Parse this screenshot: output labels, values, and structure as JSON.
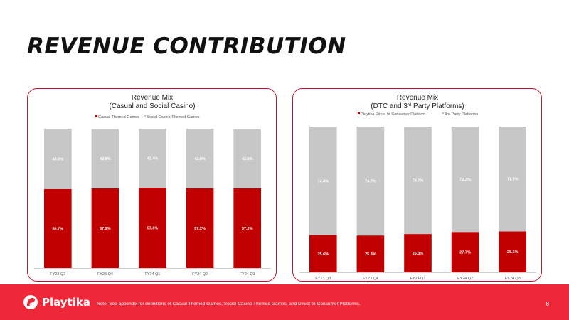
{
  "page": {
    "title": "REVENUE CONTRIBUTION",
    "footnote": "Note: See appendix for definitions of Casual Themed Games, Social Casino Themed Games, and Direct-to-Consumer Platforms.",
    "page_number": "8",
    "logo_text": "Playtika"
  },
  "colors": {
    "accent": "#c8102e",
    "footer": "#ee2839",
    "gray": "#c7c7c7"
  },
  "chart_data": [
    {
      "type": "bar",
      "stacked": true,
      "title_lines": [
        "Revenue Mix",
        "(Casual and Social Casino)"
      ],
      "categories": [
        "FY23 Q3",
        "FY23 Q4",
        "FY24 Q1",
        "FY24 Q2",
        "FY24 Q3"
      ],
      "series": [
        {
          "name": "Casual Themed Games",
          "values": [
            56.7,
            57.2,
            57.6,
            57.2,
            57.2
          ],
          "labels": [
            "56.7%",
            "57.2%",
            "57.6%",
            "57.2%",
            "57.2%"
          ],
          "color": "#c00000"
        },
        {
          "name": "Social Casino Themed Games",
          "values": [
            43.3,
            42.8,
            42.4,
            42.8,
            42.8
          ],
          "labels": [
            "43.3%",
            "42.8%",
            "42.4%",
            "42.8%",
            "42.8%"
          ],
          "color": "#c7c7c7"
        }
      ],
      "ylim": [
        0,
        100
      ],
      "legend": "top"
    },
    {
      "type": "bar",
      "stacked": true,
      "title_lines": [
        "Revenue Mix",
        "(DTC and 3",
        "rd",
        " Party Platforms)"
      ],
      "categories": [
        "FY23 Q3",
        "FY23 Q4",
        "FY24 Q1",
        "FY24 Q2",
        "FY24 Q3"
      ],
      "series": [
        {
          "name": "Playtika Direct-to-Consumer Platform",
          "values": [
            25.6,
            25.3,
            26.3,
            27.7,
            28.1
          ],
          "labels": [
            "25.6%",
            "25.3%",
            "26.3%",
            "27.7%",
            "28.1%"
          ],
          "color": "#c00000"
        },
        {
          "name": "3rd Party Platforms",
          "values": [
            74.4,
            74.7,
            73.7,
            72.3,
            71.9
          ],
          "labels": [
            "74.4%",
            "74.7%",
            "73.7%",
            "72.3%",
            "71.9%"
          ],
          "color": "#c7c7c7"
        }
      ],
      "ylim": [
        0,
        100
      ],
      "legend": "top"
    }
  ]
}
